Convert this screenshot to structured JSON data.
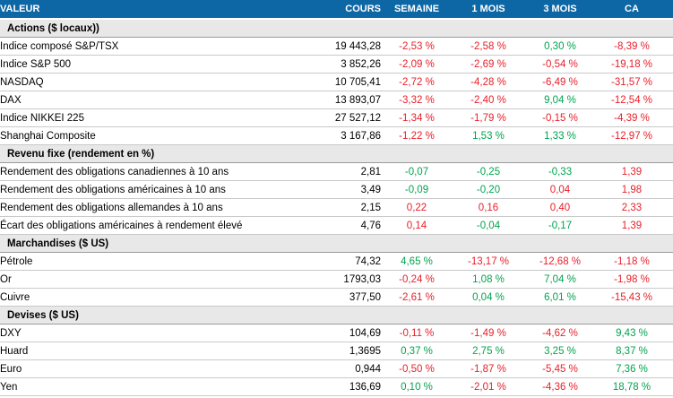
{
  "table": {
    "columns": [
      "VALEUR",
      "COURS",
      "SEMAINE",
      "1 MOIS",
      "3 MOIS",
      "CA"
    ],
    "colors": {
      "header_bg": "#0e67a5",
      "header_text": "#ffffff",
      "section_bg": "#e8e8e8",
      "negative_red": "#e8202a",
      "positive_green": "#00a44e",
      "row_border": "#c9c9c9",
      "section_border": "#9a9a9a"
    },
    "sections": [
      {
        "label": "Actions ($ locaux))",
        "rows": [
          {
            "label": "Indice composé S&P/TSX",
            "cours": "19 443,28",
            "values": [
              "-2,53 %",
              "-2,58 %",
              "0,30 %",
              "-8,39 %"
            ],
            "colors": [
              "red",
              "red",
              "green",
              "red"
            ]
          },
          {
            "label": "Indice S&P 500",
            "cours": "3 852,26",
            "values": [
              "-2,09 %",
              "-2,69 %",
              "-0,54 %",
              "-19,18 %"
            ],
            "colors": [
              "red",
              "red",
              "red",
              "red"
            ]
          },
          {
            "label": "NASDAQ",
            "cours": "10 705,41",
            "values": [
              "-2,72 %",
              "-4,28 %",
              "-6,49 %",
              "-31,57 %"
            ],
            "colors": [
              "red",
              "red",
              "red",
              "red"
            ]
          },
          {
            "label": "DAX",
            "cours": "13 893,07",
            "values": [
              "-3,32 %",
              "-2,40 %",
              "9,04 %",
              "-12,54 %"
            ],
            "colors": [
              "red",
              "red",
              "green",
              "red"
            ]
          },
          {
            "label": "Indice NIKKEI 225",
            "cours": "27 527,12",
            "values": [
              "-1,34 %",
              "-1,79 %",
              "-0,15 %",
              "-4,39 %"
            ],
            "colors": [
              "red",
              "red",
              "red",
              "red"
            ]
          },
          {
            "label": "Shanghai Composite",
            "cours": "3 167,86",
            "values": [
              "-1,22 %",
              "1,53 %",
              "1,33 %",
              "-12,97 %"
            ],
            "colors": [
              "red",
              "green",
              "green",
              "red"
            ]
          }
        ]
      },
      {
        "label": "Revenu fixe (rendement en %)",
        "rows": [
          {
            "label": "Rendement des obligations canadiennes à 10 ans",
            "cours": "2,81",
            "values": [
              "-0,07",
              "-0,25",
              "-0,33",
              "1,39"
            ],
            "colors": [
              "green",
              "green",
              "green",
              "red"
            ]
          },
          {
            "label": "Rendement des obligations américaines à 10 ans",
            "cours": "3,49",
            "values": [
              "-0,09",
              "-0,20",
              "0,04",
              "1,98"
            ],
            "colors": [
              "green",
              "green",
              "red",
              "red"
            ]
          },
          {
            "label": "Rendement des obligations allemandes à 10 ans",
            "cours": "2,15",
            "values": [
              "0,22",
              "0,16",
              "0,40",
              "2,33"
            ],
            "colors": [
              "red",
              "red",
              "red",
              "red"
            ]
          },
          {
            "label": "Écart des obligations américaines à rendement élevé",
            "cours": "4,76",
            "values": [
              "0,14",
              "-0,04",
              "-0,17",
              "1,39"
            ],
            "colors": [
              "red",
              "green",
              "green",
              "red"
            ]
          }
        ]
      },
      {
        "label": "Marchandises ($ US)",
        "rows": [
          {
            "label": "Pétrole",
            "cours": "74,32",
            "values": [
              "4,65 %",
              "-13,17 %",
              "-12,68 %",
              "-1,18 %"
            ],
            "colors": [
              "green",
              "red",
              "red",
              "red"
            ]
          },
          {
            "label": "Or",
            "cours": "1793,03",
            "values": [
              "-0,24 %",
              "1,08 %",
              "7,04 %",
              "-1,98 %"
            ],
            "colors": [
              "red",
              "green",
              "green",
              "red"
            ]
          },
          {
            "label": "Cuivre",
            "cours": "377,50",
            "values": [
              "-2,61 %",
              "0,04 %",
              "6,01 %",
              "-15,43 %"
            ],
            "colors": [
              "red",
              "green",
              "green",
              "red"
            ]
          }
        ]
      },
      {
        "label": "Devises ($ US)",
        "rows": [
          {
            "label": "DXY",
            "cours": "104,69",
            "values": [
              "-0,11 %",
              "-1,49 %",
              "-4,62 %",
              "9,43 %"
            ],
            "colors": [
              "red",
              "red",
              "red",
              "green"
            ]
          },
          {
            "label": "Huard",
            "cours": "1,3695",
            "values": [
              "0,37 %",
              "2,75 %",
              "3,25 %",
              "8,37 %"
            ],
            "colors": [
              "green",
              "green",
              "green",
              "green"
            ]
          },
          {
            "label": "Euro",
            "cours": "0,944",
            "values": [
              "-0,50 %",
              "-1,87 %",
              "-5,45 %",
              "7,36 %"
            ],
            "colors": [
              "red",
              "red",
              "red",
              "green"
            ]
          },
          {
            "label": "Yen",
            "cours": "136,69",
            "values": [
              "0,10 %",
              "-2,01 %",
              "-4,36 %",
              "18,78 %"
            ],
            "colors": [
              "green",
              "red",
              "red",
              "green"
            ]
          }
        ]
      }
    ]
  }
}
